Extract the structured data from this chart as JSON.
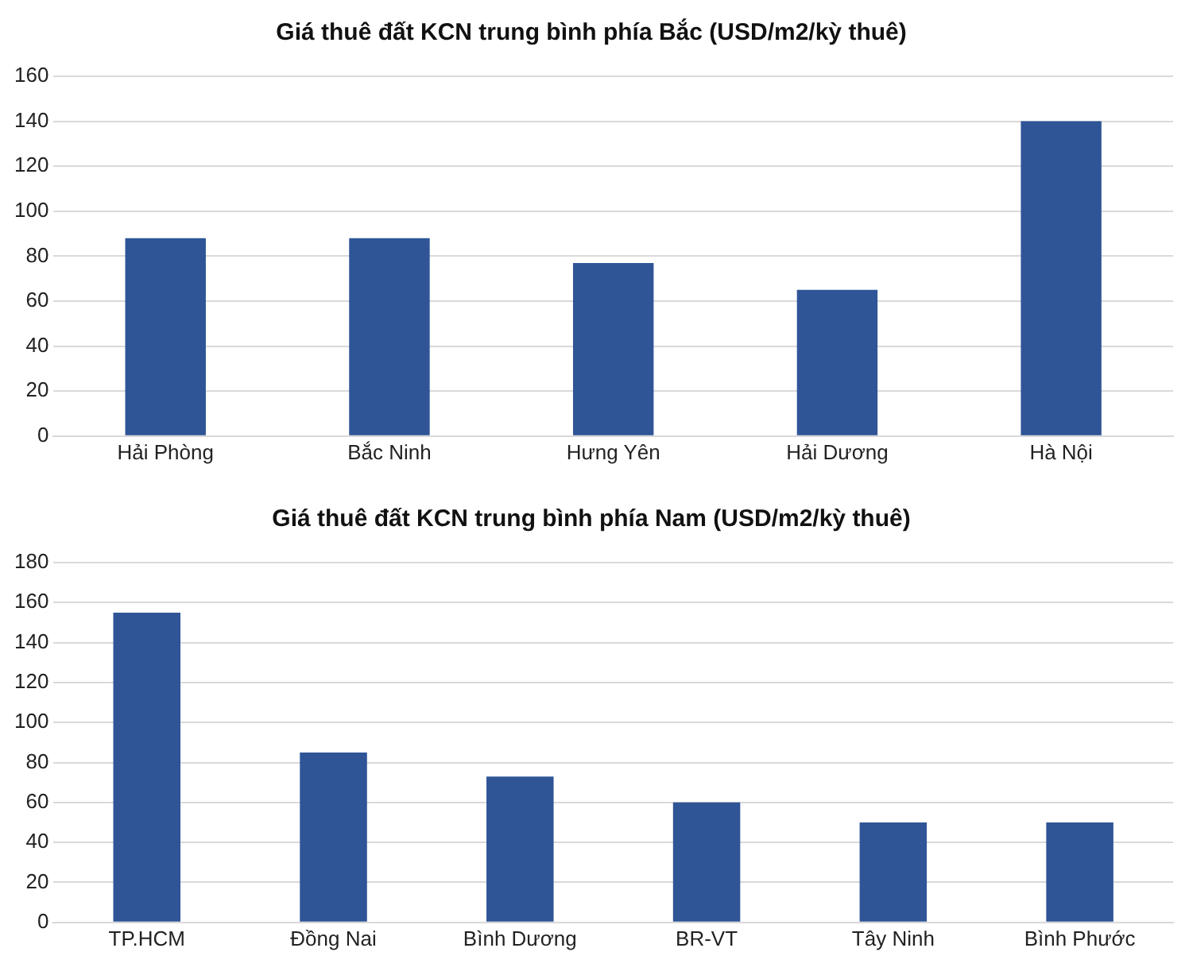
{
  "chart_data": [
    {
      "type": "bar",
      "title": "Giá thuê đất KCN trung bình phía Bắc (USD/m2/kỳ thuê)",
      "categories": [
        "Hải Phòng",
        "Bắc Ninh",
        "Hưng Yên",
        "Hải Dương",
        "Hà Nội"
      ],
      "values": [
        88,
        88,
        77,
        65,
        140
      ],
      "color": "#2f5597",
      "ylim": [
        0,
        160
      ],
      "yticks": [
        0,
        20,
        40,
        60,
        80,
        100,
        120,
        140,
        160
      ],
      "grid": "y"
    },
    {
      "type": "bar",
      "title": "Giá thuê đất KCN trung bình phía Nam (USD/m2/kỳ thuê)",
      "categories": [
        "TP.HCM",
        "Đồng Nai",
        "Bình Dương",
        "BR-VT",
        "Tây Ninh",
        "Bình Phước"
      ],
      "values": [
        155,
        85,
        73,
        60,
        50,
        50
      ],
      "color": "#2f5597",
      "ylim": [
        0,
        180
      ],
      "yticks": [
        0,
        20,
        40,
        60,
        80,
        100,
        120,
        140,
        160,
        180
      ],
      "grid": "y"
    }
  ]
}
